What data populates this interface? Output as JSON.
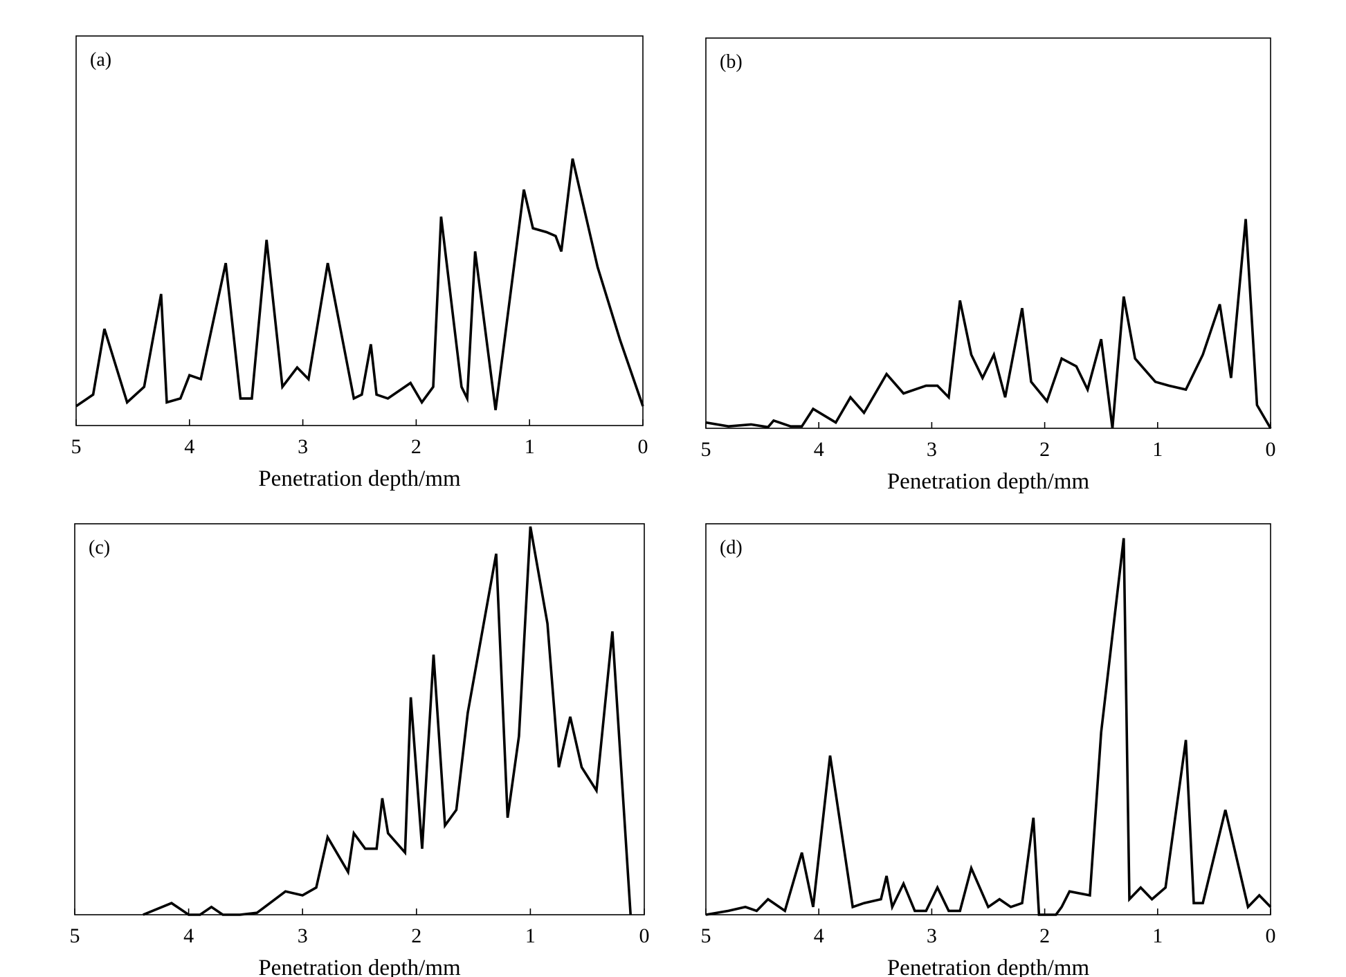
{
  "chart_data": [
    {
      "type": "line",
      "panel_label": "(a)",
      "xlabel": "Penetration depth/mm",
      "ylabel": "",
      "xlim": [
        5,
        0
      ],
      "ylim": [
        0,
        100
      ],
      "x_reversed": true,
      "xticks": [
        "5",
        "4",
        "3",
        "2",
        "1",
        "0"
      ],
      "grid": false,
      "series": [
        {
          "x": [
            5.0,
            4.85,
            4.75,
            4.55,
            4.4,
            4.25,
            4.2,
            4.08,
            4.0,
            3.9,
            3.68,
            3.55,
            3.45,
            3.32,
            3.18,
            3.05,
            2.95,
            2.78,
            2.55,
            2.48,
            2.4,
            2.35,
            2.25,
            2.05,
            1.95,
            1.85,
            1.78,
            1.6,
            1.55,
            1.48,
            1.3,
            1.05,
            0.97,
            0.85,
            0.77,
            0.72,
            0.62,
            0.4,
            0.2,
            0.0
          ],
          "y": [
            5,
            8,
            25,
            6,
            10,
            34,
            6,
            7,
            13,
            12,
            42,
            7,
            7,
            48,
            10,
            15,
            12,
            42,
            7,
            8,
            21,
            8,
            7,
            11,
            6,
            10,
            54,
            10,
            7,
            45,
            4,
            61,
            51,
            50,
            49,
            45,
            69,
            41,
            22,
            5
          ]
        }
      ]
    },
    {
      "type": "line",
      "panel_label": "(b)",
      "xlabel": "Penetration depth/mm",
      "ylabel": "",
      "xlim": [
        5,
        0
      ],
      "ylim": [
        0,
        100
      ],
      "x_reversed": true,
      "xticks": [
        "5",
        "4",
        "3",
        "2",
        "1",
        "0"
      ],
      "grid": false,
      "series": [
        {
          "x": [
            5.0,
            4.8,
            4.6,
            4.45,
            4.4,
            4.35,
            4.25,
            4.15,
            4.05,
            3.85,
            3.72,
            3.6,
            3.4,
            3.25,
            3.05,
            2.95,
            2.85,
            2.75,
            2.65,
            2.55,
            2.45,
            2.35,
            2.2,
            2.12,
            1.98,
            1.85,
            1.72,
            1.62,
            1.5,
            1.4,
            1.3,
            1.2,
            1.02,
            0.9,
            0.75,
            0.6,
            0.45,
            0.35,
            0.22,
            0.12,
            0.0
          ],
          "y": [
            1.5,
            0.5,
            1,
            0.3,
            2,
            1.5,
            0.5,
            0.5,
            5,
            1.5,
            8,
            4,
            14,
            9,
            11,
            11,
            8,
            33,
            19,
            13,
            19,
            8,
            31,
            12,
            7,
            18,
            16,
            10,
            23,
            0,
            34,
            18,
            12,
            11,
            10,
            19,
            32,
            13,
            54,
            6,
            0
          ]
        }
      ]
    },
    {
      "type": "line",
      "panel_label": "(c)",
      "xlabel": "Penetration depth/mm",
      "ylabel": "",
      "xlim": [
        5,
        0
      ],
      "ylim": [
        0,
        100
      ],
      "x_reversed": true,
      "xticks": [
        "5",
        "4",
        "3",
        "2",
        "1",
        "0"
      ],
      "grid": false,
      "series": [
        {
          "x": [
            4.4,
            4.15,
            4.0,
            3.9,
            3.8,
            3.7,
            3.55,
            3.4,
            3.15,
            3.0,
            2.88,
            2.78,
            2.6,
            2.55,
            2.45,
            2.35,
            2.3,
            2.25,
            2.1,
            2.05,
            1.95,
            1.85,
            1.75,
            1.65,
            1.55,
            1.3,
            1.2,
            1.1,
            1.0,
            0.85,
            0.75,
            0.65,
            0.55,
            0.42,
            0.28,
            0.12
          ],
          "y": [
            0,
            3,
            0,
            0,
            2,
            0,
            0,
            0.5,
            6,
            5,
            7,
            20,
            11,
            21,
            17,
            17,
            30,
            21,
            16,
            56,
            17,
            67,
            23,
            27,
            52,
            93,
            25,
            46,
            100,
            75,
            38,
            51,
            38,
            32,
            73,
            0
          ]
        }
      ]
    },
    {
      "type": "line",
      "panel_label": "(d)",
      "xlabel": "Penetration depth/mm",
      "ylabel": "",
      "xlim": [
        5,
        0
      ],
      "ylim": [
        0,
        100
      ],
      "x_reversed": true,
      "xticks": [
        "5",
        "4",
        "3",
        "2",
        "1",
        "0"
      ],
      "grid": false,
      "series": [
        {
          "x": [
            5.0,
            4.8,
            4.65,
            4.55,
            4.45,
            4.3,
            4.15,
            4.05,
            3.9,
            3.7,
            3.6,
            3.45,
            3.4,
            3.35,
            3.25,
            3.15,
            3.05,
            2.95,
            2.85,
            2.75,
            2.65,
            2.5,
            2.4,
            2.3,
            2.2,
            2.1,
            2.05,
            1.9,
            1.85,
            1.78,
            1.6,
            1.5,
            1.3,
            1.25,
            1.15,
            1.05,
            0.93,
            0.75,
            0.68,
            0.6,
            0.4,
            0.2,
            0.1,
            0.0
          ],
          "y": [
            0,
            1,
            2,
            1,
            4,
            1,
            16,
            2,
            41,
            2,
            3,
            4,
            10,
            2,
            8,
            1,
            1,
            7,
            1,
            1,
            12,
            2,
            4,
            2,
            3,
            25,
            0,
            0,
            2,
            6,
            5,
            47,
            97,
            4,
            7,
            4,
            7,
            45,
            3,
            3,
            27,
            2,
            5,
            2
          ]
        }
      ]
    }
  ]
}
